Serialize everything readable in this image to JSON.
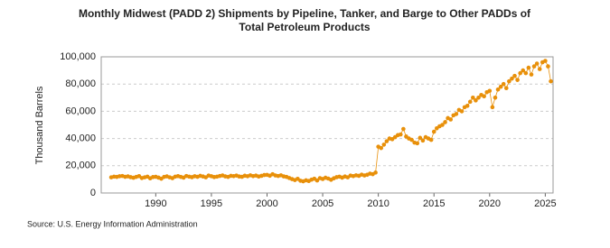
{
  "chart_data": {
    "type": "line",
    "title": "Monthly Midwest (PADD 2) Shipments by Pipeline, Tanker, and Barge to Other PADDs of Total Petroleum Products",
    "ylabel": "Thousand Barrels",
    "source": "Source: U.S. Energy Information Administration",
    "xlim": [
      1985.1,
      2025.7
    ],
    "xticks": [
      1990,
      1995,
      2000,
      2005,
      2010,
      2015,
      2020,
      2025
    ],
    "ylim": [
      0,
      100000
    ],
    "yticks": [
      0,
      {
        "value": 20000,
        "label": "20,000"
      },
      {
        "value": 40000,
        "label": "40,000"
      },
      {
        "value": 60000,
        "label": "60,000"
      },
      {
        "value": 80000,
        "label": "80,000"
      },
      {
        "value": 100000,
        "label": "100,000"
      }
    ],
    "grid": true,
    "x": [
      1986,
      1986.25,
      1986.5,
      1986.75,
      1987,
      1987.25,
      1987.5,
      1987.75,
      1988,
      1988.25,
      1988.5,
      1988.75,
      1989,
      1989.25,
      1989.5,
      1989.75,
      1990,
      1990.25,
      1990.5,
      1990.75,
      1991,
      1991.25,
      1991.5,
      1991.75,
      1992,
      1992.25,
      1992.5,
      1992.75,
      1993,
      1993.25,
      1993.5,
      1993.75,
      1994,
      1994.25,
      1994.5,
      1994.75,
      1995,
      1995.25,
      1995.5,
      1995.75,
      1996,
      1996.25,
      1996.5,
      1996.75,
      1997,
      1997.25,
      1997.5,
      1997.75,
      1998,
      1998.25,
      1998.5,
      1998.75,
      1999,
      1999.25,
      1999.5,
      1999.75,
      2000,
      2000.25,
      2000.5,
      2000.75,
      2001,
      2001.25,
      2001.5,
      2001.75,
      2002,
      2002.25,
      2002.5,
      2002.75,
      2003,
      2003.25,
      2003.5,
      2003.75,
      2004,
      2004.25,
      2004.5,
      2004.75,
      2005,
      2005.25,
      2005.5,
      2005.75,
      2006,
      2006.25,
      2006.5,
      2006.75,
      2007,
      2007.25,
      2007.5,
      2007.75,
      2008,
      2008.25,
      2008.5,
      2008.75,
      2009,
      2009.25,
      2009.5,
      2009.75,
      2010,
      2010.25,
      2010.5,
      2010.75,
      2011,
      2011.25,
      2011.5,
      2011.75,
      2012,
      2012.25,
      2012.5,
      2012.75,
      2013,
      2013.25,
      2013.5,
      2013.75,
      2014,
      2014.25,
      2014.5,
      2014.75,
      2015,
      2015.25,
      2015.5,
      2015.75,
      2016,
      2016.25,
      2016.5,
      2016.75,
      2017,
      2017.25,
      2017.5,
      2017.75,
      2018,
      2018.25,
      2018.5,
      2018.75,
      2019,
      2019.25,
      2019.5,
      2019.75,
      2020,
      2020.25,
      2020.5,
      2020.75,
      2021,
      2021.25,
      2021.5,
      2021.75,
      2022,
      2022.25,
      2022.5,
      2022.75,
      2023,
      2023.25,
      2023.5,
      2023.75,
      2024,
      2024.25,
      2024.5,
      2024.75,
      2025,
      2025.25,
      2025.5
    ],
    "series": [
      {
        "color": "#e8900a",
        "values": [
          11500,
          12000,
          11800,
          12300,
          12500,
          11900,
          12200,
          11600,
          11200,
          11800,
          12400,
          11000,
          11500,
          12000,
          10800,
          11700,
          11900,
          11300,
          10500,
          11800,
          12200,
          11500,
          10900,
          12000,
          12400,
          11800,
          11300,
          12500,
          12000,
          11600,
          12300,
          11900,
          12600,
          12100,
          11500,
          12800,
          12300,
          11700,
          12000,
          12500,
          12900,
          12200,
          11800,
          12600,
          12400,
          12800,
          12100,
          11900,
          12700,
          12300,
          13000,
          12400,
          12800,
          12100,
          12600,
          13200,
          13300,
          12700,
          13800,
          12900,
          12500,
          13000,
          12200,
          11800,
          11000,
          10200,
          9500,
          10400,
          9000,
          8600,
          9300,
          8800,
          9800,
          10500,
          9200,
          10900,
          10300,
          11200,
          10600,
          9700,
          10800,
          11600,
          12000,
          11300,
          12100,
          11500,
          12800,
          12400,
          13000,
          12600,
          13500,
          12900,
          13400,
          14200,
          13800,
          15000,
          34000,
          33000,
          35500,
          38000,
          40000,
          39500,
          41000,
          42500,
          43000,
          47000,
          41500,
          40000,
          39000,
          37000,
          36500,
          40500,
          38500,
          41000,
          40000,
          39000,
          45000,
          47500,
          49000,
          50000,
          52000,
          55000,
          54000,
          57000,
          58000,
          61000,
          60000,
          63000,
          64000,
          67000,
          70000,
          68000,
          70000,
          72000,
          71000,
          74000,
          75000,
          63000,
          70000,
          76000,
          78000,
          80000,
          77000,
          82000,
          84000,
          86000,
          83000,
          88000,
          90000,
          88000,
          92000,
          87000,
          93000,
          95000,
          91000,
          96000,
          97000,
          93000,
          82000
        ]
      }
    ]
  }
}
